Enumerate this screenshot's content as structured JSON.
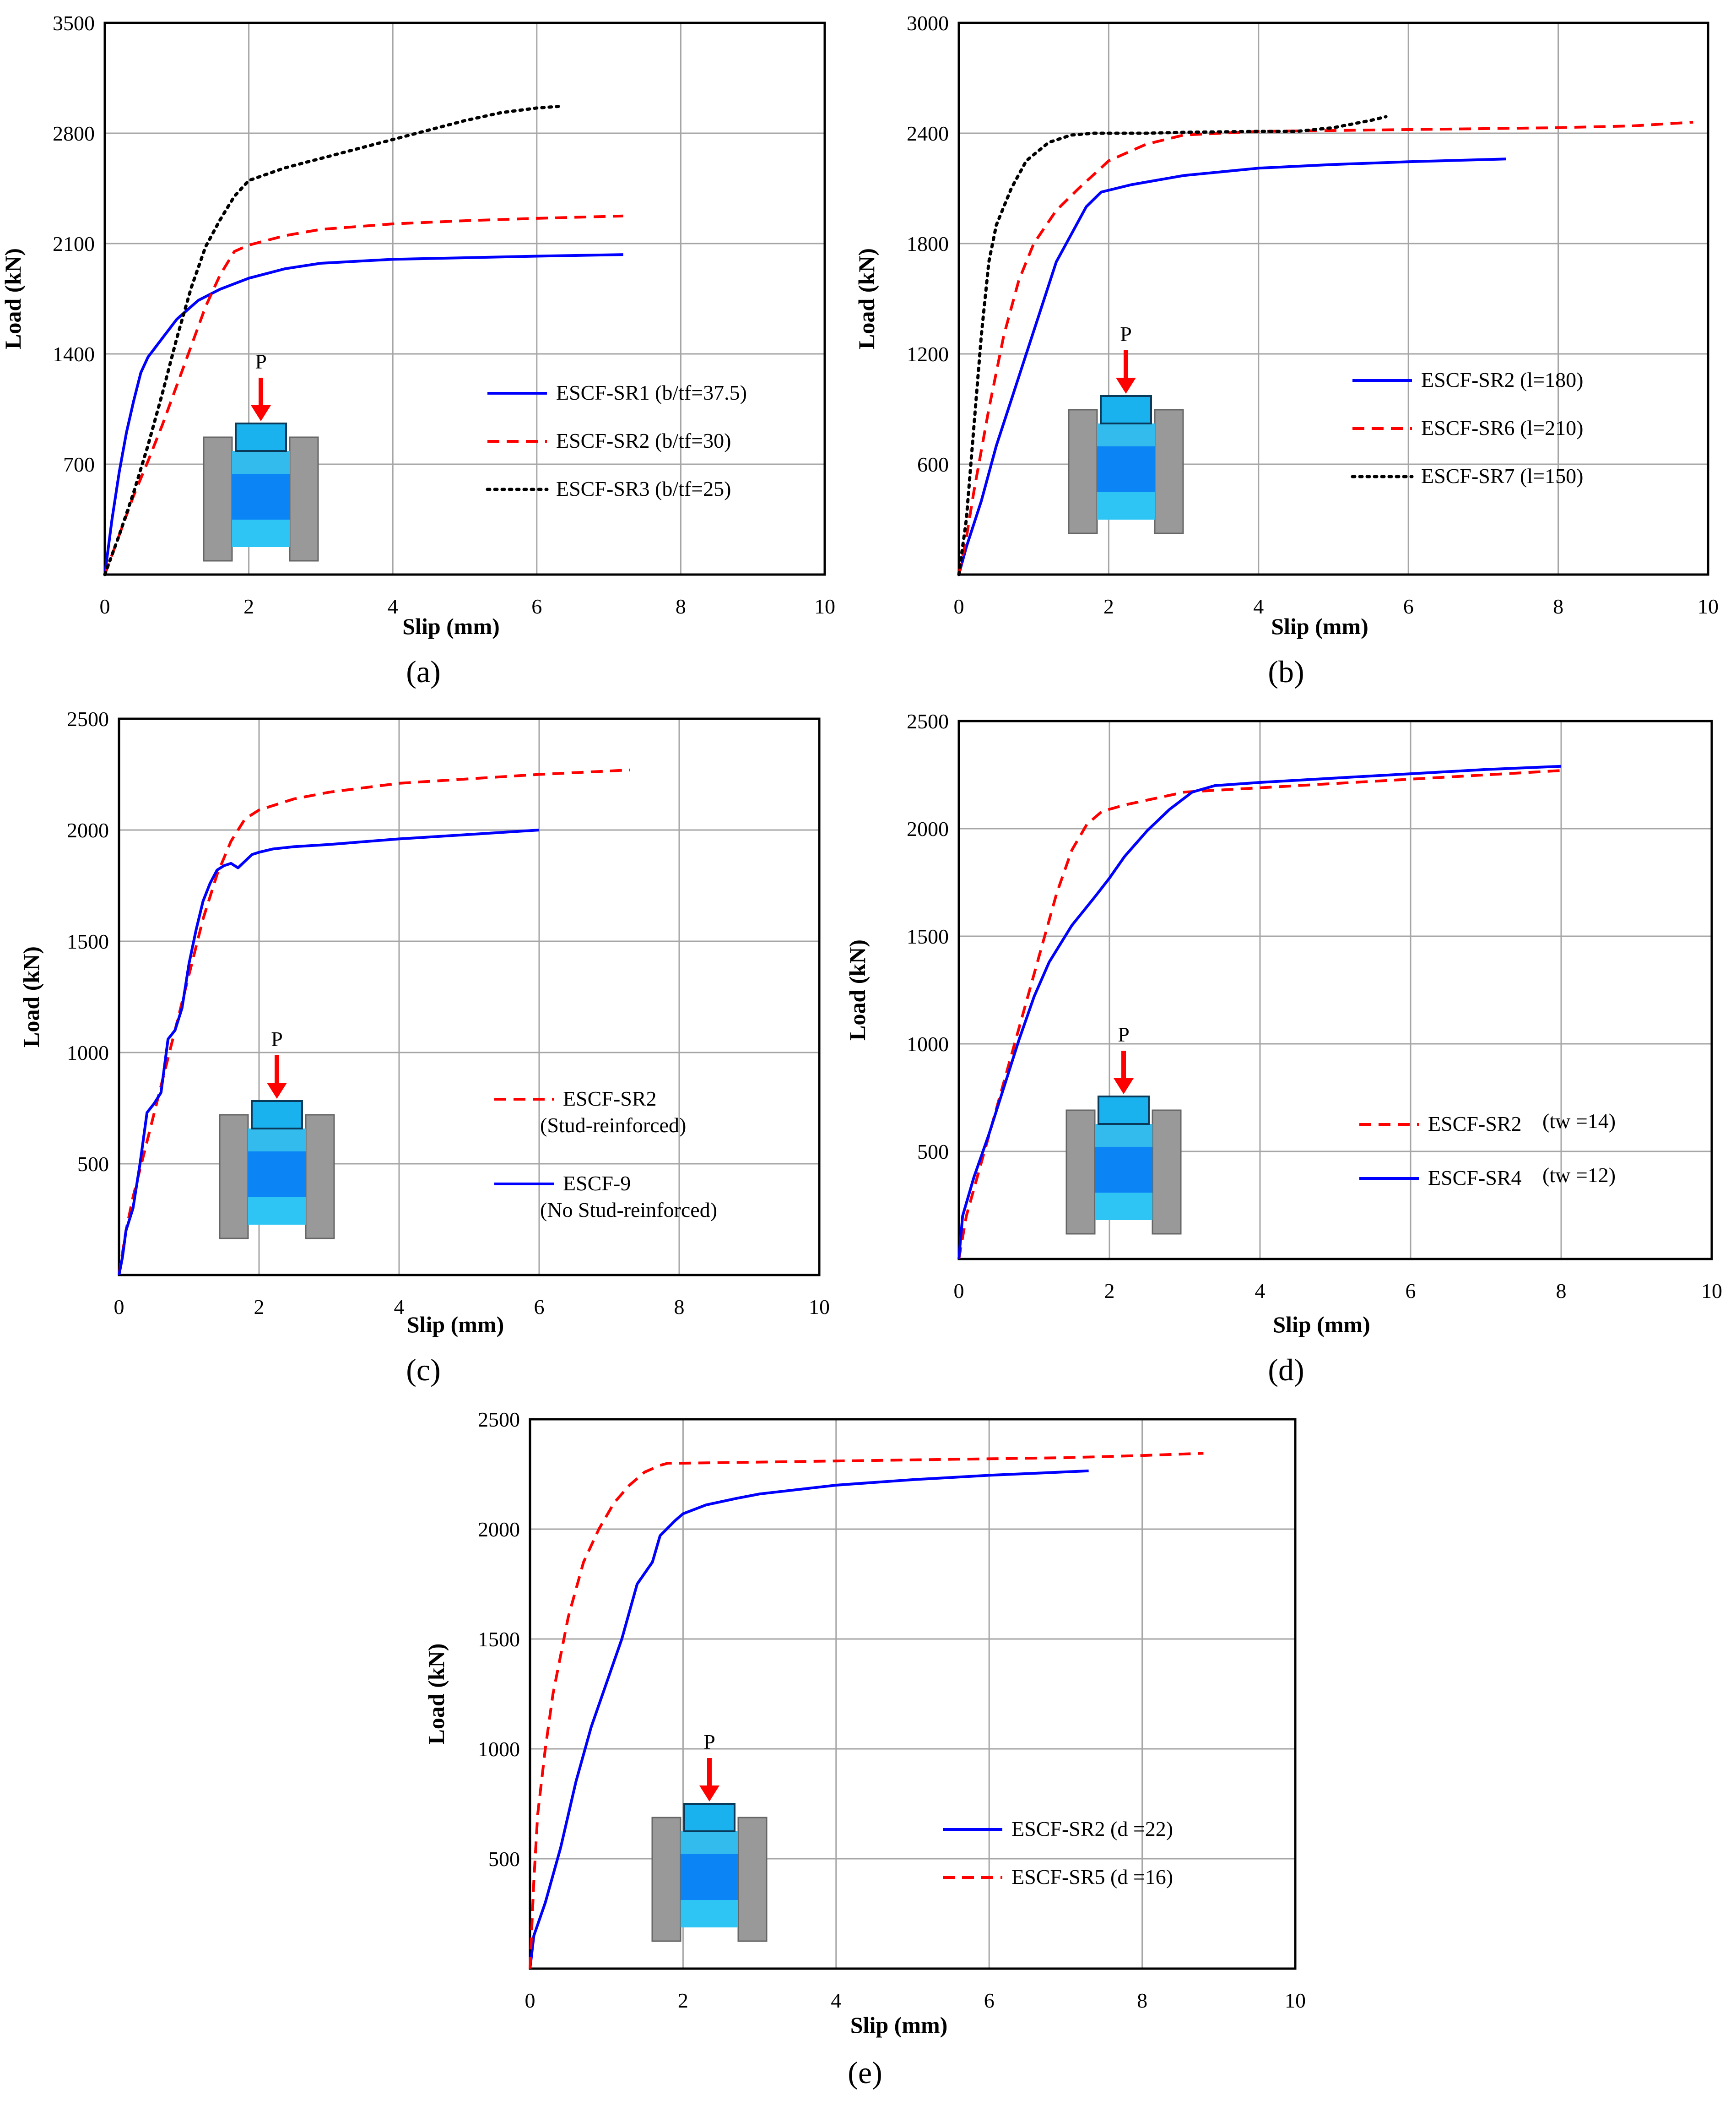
{
  "chart_data": [
    {
      "id": "a",
      "type": "line",
      "caption": "(a)",
      "xlabel": "Slip (mm)",
      "ylabel": "Load (kN)",
      "xlim": [
        0,
        10
      ],
      "ylim": [
        0,
        3500
      ],
      "xticks": [
        "0",
        "2",
        "4",
        "6",
        "8",
        "10"
      ],
      "yticks": [
        "700",
        "1400",
        "2100",
        "2800",
        "3500"
      ],
      "grid": true,
      "legend_position": "middle-right",
      "inset_label": "P",
      "series": [
        {
          "name": "ESCF-SR1",
          "legend_text": "ESCF-SR1 (b/tf=37.5)",
          "color": "#0000ff",
          "style": "solid",
          "x": [
            0,
            0.1,
            0.2,
            0.3,
            0.4,
            0.5,
            0.6,
            0.8,
            1.0,
            1.3,
            1.6,
            2.0,
            2.5,
            3.0,
            4.0,
            5.0,
            6.0,
            7.2
          ],
          "y": [
            0,
            350,
            650,
            900,
            1100,
            1280,
            1380,
            1500,
            1620,
            1740,
            1810,
            1880,
            1940,
            1975,
            2000,
            2010,
            2020,
            2030
          ]
        },
        {
          "name": "ESCF-SR2",
          "legend_text": "ESCF-SR2 (b/tf=30)",
          "color": "#ff0000",
          "style": "dashed",
          "x": [
            0,
            0.2,
            0.4,
            0.6,
            0.8,
            1.0,
            1.2,
            1.4,
            1.6,
            1.8,
            2.0,
            2.5,
            3.0,
            4.0,
            5.0,
            6.0,
            7.2
          ],
          "y": [
            0,
            250,
            500,
            720,
            950,
            1200,
            1450,
            1700,
            1900,
            2050,
            2090,
            2150,
            2190,
            2225,
            2245,
            2260,
            2275
          ]
        },
        {
          "name": "ESCF-SR3",
          "legend_text": "ESCF-SR3 (b/tf=25)",
          "color": "#000000",
          "style": "dotted",
          "x": [
            0,
            0.2,
            0.4,
            0.6,
            0.8,
            1.0,
            1.2,
            1.4,
            1.6,
            1.8,
            2.0,
            2.5,
            3.0,
            3.5,
            4.0,
            4.5,
            5.0,
            5.5,
            6.0,
            6.3
          ],
          "y": [
            0,
            250,
            520,
            820,
            1150,
            1500,
            1820,
            2080,
            2250,
            2400,
            2500,
            2580,
            2640,
            2700,
            2760,
            2820,
            2880,
            2930,
            2960,
            2970
          ]
        }
      ]
    },
    {
      "id": "b",
      "type": "line",
      "caption": "(b)",
      "xlabel": "Slip (mm)",
      "ylabel": "Load (kN)",
      "xlim": [
        0,
        10
      ],
      "ylim": [
        0,
        3000
      ],
      "xticks": [
        "0",
        "2",
        "4",
        "6",
        "8",
        "10"
      ],
      "yticks": [
        "600",
        "1200",
        "1800",
        "2400",
        "3000"
      ],
      "grid": true,
      "legend_position": "middle-right",
      "inset_label": "P",
      "series": [
        {
          "name": "ESCF-SR2",
          "legend_text": "ESCF-SR2 (l=180)",
          "color": "#0000ff",
          "style": "solid",
          "x": [
            0,
            0.1,
            0.3,
            0.5,
            0.7,
            0.9,
            1.1,
            1.3,
            1.5,
            1.7,
            1.9,
            2.3,
            3.0,
            4.0,
            5.0,
            6.0,
            7.3
          ],
          "y": [
            0,
            150,
            400,
            700,
            950,
            1200,
            1450,
            1700,
            1850,
            2000,
            2080,
            2120,
            2170,
            2210,
            2230,
            2245,
            2260
          ]
        },
        {
          "name": "ESCF-SR6",
          "legend_text": "ESCF-SR6 (l=210)",
          "color": "#ff0000",
          "style": "dashed",
          "x": [
            0,
            0.1,
            0.2,
            0.4,
            0.6,
            0.8,
            1.0,
            1.3,
            1.6,
            2.0,
            2.5,
            3.0,
            4.0,
            5.0,
            6.0,
            7.0,
            8.0,
            9.0,
            9.8
          ],
          "y": [
            0,
            200,
            450,
            900,
            1300,
            1600,
            1800,
            1980,
            2100,
            2250,
            2340,
            2390,
            2410,
            2415,
            2420,
            2425,
            2430,
            2440,
            2460
          ]
        },
        {
          "name": "ESCF-SR7",
          "legend_text": "ESCF-SR7 (l=150)",
          "color": "#000000",
          "style": "dotted",
          "x": [
            0,
            0.1,
            0.2,
            0.3,
            0.4,
            0.5,
            0.7,
            0.9,
            1.2,
            1.5,
            1.8,
            2.5,
            3.0,
            4.0,
            4.5,
            5.0,
            5.5,
            5.7
          ],
          "y": [
            0,
            300,
            800,
            1300,
            1700,
            1900,
            2100,
            2250,
            2350,
            2390,
            2400,
            2400,
            2405,
            2410,
            2410,
            2430,
            2470,
            2490
          ]
        }
      ]
    },
    {
      "id": "c",
      "type": "line",
      "caption": "(c)",
      "xlabel": "Slip (mm)",
      "ylabel": "Load (kN)",
      "xlim": [
        0,
        10
      ],
      "ylim": [
        0,
        2500
      ],
      "xticks": [
        "0",
        "2",
        "4",
        "6",
        "8",
        "10"
      ],
      "yticks": [
        "500",
        "1000",
        "1500",
        "2000",
        "2500"
      ],
      "grid": true,
      "legend_position": "middle-right",
      "inset_label": "P",
      "series": [
        {
          "name": "ESCF-SR2",
          "legend_line1": "ESCF-SR2",
          "legend_line2": "(Stud-reinforced)",
          "color": "#ff0000",
          "style": "dashed",
          "x": [
            0,
            0.1,
            0.2,
            0.4,
            0.6,
            0.8,
            1.0,
            1.2,
            1.4,
            1.6,
            1.8,
            2.0,
            2.5,
            3.0,
            4.0,
            5.0,
            6.0,
            7.3
          ],
          "y": [
            0,
            200,
            350,
            600,
            850,
            1100,
            1350,
            1600,
            1800,
            1950,
            2050,
            2090,
            2140,
            2170,
            2210,
            2230,
            2250,
            2270
          ]
        },
        {
          "name": "ESCF-9",
          "legend_line1": "ESCF-9",
          "legend_line2": "(No Stud-reinforced)",
          "color": "#0000ff",
          "style": "solid",
          "x": [
            0,
            0.05,
            0.1,
            0.2,
            0.3,
            0.4,
            0.5,
            0.6,
            0.7,
            0.8,
            0.9,
            1.0,
            1.1,
            1.2,
            1.3,
            1.4,
            1.5,
            1.6,
            1.7,
            1.8,
            1.9,
            2.0,
            2.2,
            2.5,
            3.0,
            4.0,
            5.0,
            6.0
          ],
          "y": [
            0,
            80,
            200,
            300,
            500,
            730,
            770,
            820,
            1060,
            1100,
            1200,
            1400,
            1550,
            1680,
            1760,
            1820,
            1840,
            1850,
            1830,
            1860,
            1890,
            1900,
            1915,
            1925,
            1935,
            1960,
            1980,
            2000
          ]
        }
      ]
    },
    {
      "id": "d",
      "type": "line",
      "caption": "(d)",
      "xlabel": "Slip (mm)",
      "ylabel": "Load (kN)",
      "xlim": [
        0,
        10
      ],
      "ylim": [
        0,
        2500
      ],
      "xticks": [
        "0",
        "2",
        "4",
        "6",
        "8",
        "10"
      ],
      "yticks": [
        "500",
        "1000",
        "1500",
        "2000",
        "2500"
      ],
      "grid": true,
      "legend_position": "middle-right",
      "inset_label": "P",
      "series": [
        {
          "name": "ESCF-SR2",
          "legend_text": "ESCF-SR2",
          "legend_param": "(tw =14)",
          "color": "#ff0000",
          "style": "dashed",
          "x": [
            0,
            0.1,
            0.3,
            0.5,
            0.7,
            0.9,
            1.1,
            1.3,
            1.5,
            1.7,
            1.9,
            2.2,
            2.6,
            3.0,
            3.5,
            4.0,
            5.0,
            6.0,
            7.0,
            8.0
          ],
          "y": [
            0,
            200,
            450,
            700,
            950,
            1200,
            1450,
            1700,
            1900,
            2020,
            2080,
            2110,
            2140,
            2170,
            2180,
            2190,
            2210,
            2230,
            2250,
            2270
          ]
        },
        {
          "name": "ESCF-SR4",
          "legend_text": "ESCF-SR4",
          "legend_param": "(tw =12)",
          "color": "#0000ff",
          "style": "solid",
          "x": [
            0,
            0.05,
            0.2,
            0.4,
            0.6,
            0.8,
            1.0,
            1.2,
            1.5,
            1.8,
            2.0,
            2.2,
            2.5,
            2.8,
            3.1,
            3.4,
            4.0,
            5.0,
            6.0,
            7.0,
            8.0
          ],
          "y": [
            0,
            200,
            380,
            580,
            800,
            1020,
            1220,
            1380,
            1550,
            1680,
            1770,
            1870,
            1990,
            2090,
            2170,
            2200,
            2215,
            2235,
            2255,
            2275,
            2290
          ]
        }
      ]
    },
    {
      "id": "e",
      "type": "line",
      "caption": "(e)",
      "xlabel": "Slip (mm)",
      "ylabel": "Load (kN)",
      "xlim": [
        0,
        10
      ],
      "ylim": [
        0,
        2500
      ],
      "xticks": [
        "0",
        "2",
        "4",
        "6",
        "8",
        "10"
      ],
      "yticks": [
        "500",
        "1000",
        "1500",
        "2000",
        "2500"
      ],
      "grid": true,
      "legend_position": "bottom-right",
      "inset_label": "P",
      "series": [
        {
          "name": "ESCF-SR2",
          "legend_text": "ESCF-SR2 (d =22)",
          "color": "#0000ff",
          "style": "solid",
          "x": [
            0,
            0.05,
            0.2,
            0.4,
            0.6,
            0.8,
            1.0,
            1.2,
            1.4,
            1.6,
            1.7,
            1.9,
            2.0,
            2.3,
            2.7,
            3.0,
            4.0,
            5.0,
            6.0,
            7.3
          ],
          "y": [
            0,
            150,
            300,
            550,
            850,
            1100,
            1300,
            1500,
            1750,
            1850,
            1970,
            2040,
            2070,
            2110,
            2140,
            2160,
            2200,
            2225,
            2245,
            2265
          ]
        },
        {
          "name": "ESCF-SR5",
          "legend_text": "ESCF-SR5 (d =16)",
          "color": "#ff0000",
          "style": "dashed",
          "x": [
            0,
            0.05,
            0.1,
            0.2,
            0.3,
            0.5,
            0.7,
            0.9,
            1.1,
            1.3,
            1.5,
            1.7,
            1.8,
            2.0,
            3.0,
            4.0,
            5.0,
            6.0,
            7.0,
            8.0,
            8.8
          ],
          "y": [
            0,
            400,
            700,
            1000,
            1250,
            1600,
            1850,
            2000,
            2120,
            2200,
            2260,
            2290,
            2300,
            2300,
            2305,
            2310,
            2315,
            2320,
            2325,
            2335,
            2345
          ]
        }
      ]
    }
  ]
}
